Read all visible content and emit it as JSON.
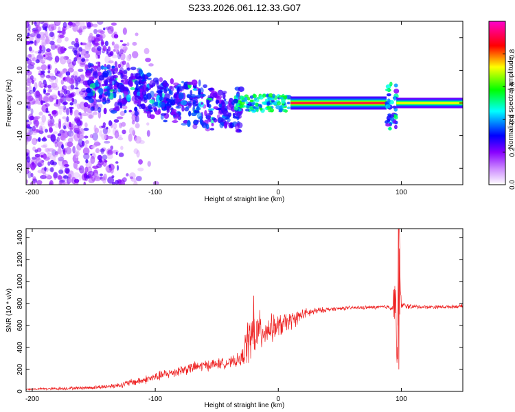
{
  "page": {
    "title": "S233.2026.061.12.33.G07"
  },
  "chart_data": [
    {
      "type": "heatmap",
      "title": "S233.2026.061.12.33.G07",
      "xlabel": "Height of straight line (km)",
      "ylabel": "Frequency (Hz)",
      "xlim": [
        -205,
        150
      ],
      "ylim": [
        -25,
        25
      ],
      "xticks": [
        -200,
        -100,
        0,
        100
      ],
      "xtick_labels": [
        "-200",
        "-100",
        "0",
        "100"
      ],
      "yticks": [
        -20,
        -10,
        0,
        10,
        20
      ],
      "ytick_labels": [
        "-20",
        "-10",
        "0",
        "10",
        "20"
      ],
      "colorbar": {
        "label": "Normalized spectral amplitude",
        "range": [
          0,
          1
        ],
        "ticks": [
          0.0,
          0.2,
          0.4,
          0.6,
          0.8
        ],
        "tick_labels": [
          "0.0",
          "0.2",
          "0.4",
          "0.6",
          "0.8"
        ],
        "colormap": [
          "#e8d8ff",
          "#9933ff",
          "#0000ff",
          "#00ffff",
          "#00ff00",
          "#ffff00",
          "#ff0000",
          "#ff00aa"
        ]
      },
      "features": [
        {
          "name": "scattered-weak-noise",
          "x_range": [
            -205,
            -95
          ],
          "y_range": [
            -25,
            25
          ],
          "amplitude": 0.1
        },
        {
          "name": "diffuse-purple-cluster",
          "x_range": [
            -155,
            -30
          ],
          "y_range": [
            -12,
            12
          ],
          "amplitude": 0.25
        },
        {
          "name": "transition-segment",
          "x_range": [
            -35,
            10
          ],
          "y_center": 0,
          "amplitude": 0.5
        },
        {
          "name": "strong-carrier-line",
          "x_range": [
            10,
            88
          ],
          "y_center": 0,
          "amplitude": 0.95
        },
        {
          "name": "disturbance",
          "x_center": 92,
          "y_range": [
            -8,
            6
          ],
          "amplitude": 0.45
        },
        {
          "name": "carrier-line-after-disturbance",
          "x_range": [
            96,
            150
          ],
          "y_center": 0,
          "amplitude": 0.75
        }
      ]
    },
    {
      "type": "line",
      "xlabel": "Height of straight line (km)",
      "ylabel": "SNR (10 * v/v)",
      "xlim": [
        -205,
        150
      ],
      "ylim": [
        0,
        1480
      ],
      "xticks": [
        -200,
        -100,
        0,
        100
      ],
      "xtick_labels": [
        "-200",
        "-100",
        "0",
        "100"
      ],
      "yticks": [
        0,
        200,
        400,
        600,
        800,
        1000,
        1200,
        1400
      ],
      "ytick_labels": [
        "0",
        "200",
        "400",
        "600",
        "800",
        "1000",
        "1200",
        "1400"
      ],
      "series": [
        {
          "name": "SNR",
          "color": "#ee2222",
          "x": [
            -205,
            -180,
            -150,
            -130,
            -120,
            -110,
            -100,
            -90,
            -80,
            -70,
            -60,
            -50,
            -40,
            -30,
            -25,
            -20,
            -10,
            0,
            10,
            20,
            30,
            40,
            50,
            60,
            70,
            80,
            90,
            93,
            95,
            97,
            98,
            100,
            110,
            120,
            130,
            140,
            150
          ],
          "values": [
            20,
            25,
            35,
            55,
            80,
            100,
            130,
            160,
            190,
            215,
            235,
            250,
            260,
            290,
            450,
            520,
            560,
            590,
            640,
            700,
            730,
            745,
            755,
            760,
            762,
            765,
            770,
            760,
            900,
            250,
            1480,
            780,
            770,
            768,
            768,
            770,
            775
          ],
          "noise_amplitude": [
            10,
            15,
            20,
            30,
            40,
            45,
            50,
            55,
            60,
            60,
            60,
            60,
            55,
            80,
            250,
            280,
            160,
            130,
            100,
            60,
            40,
            25,
            20,
            20,
            20,
            20,
            25,
            60,
            300,
            250,
            450,
            40,
            25,
            20,
            20,
            20,
            20
          ]
        }
      ]
    }
  ]
}
